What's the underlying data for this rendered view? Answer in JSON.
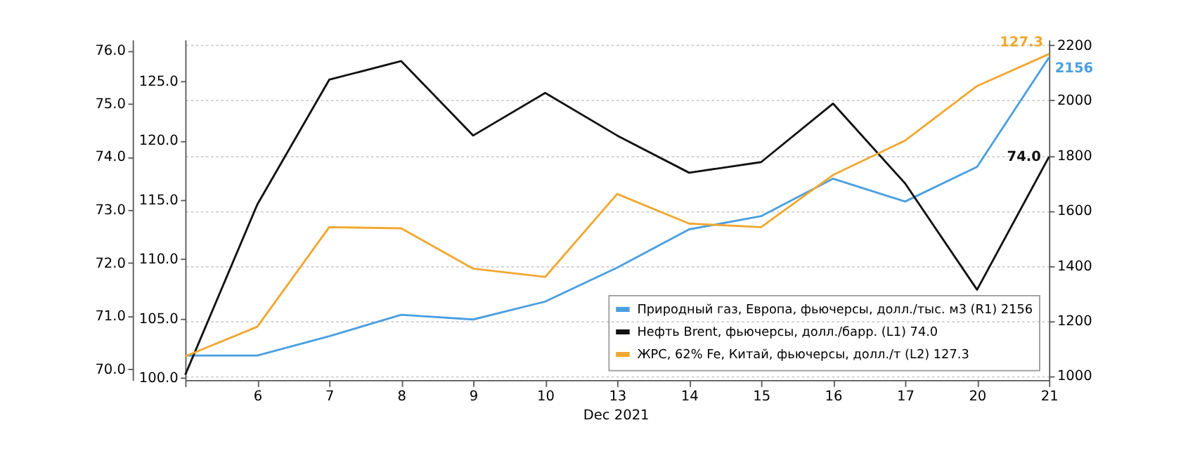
{
  "chart_data": {
    "type": "line",
    "xlabel": "Dec 2021",
    "categories": [
      null,
      "6",
      "7",
      "8",
      "9",
      "10",
      "13",
      "14",
      "15",
      "16",
      "17",
      "20",
      "21"
    ],
    "series": [
      {
        "name": "Природный газ, Европа, фьючерсы, долл./тыс. м3 (R1) 2156",
        "color": "#4a9fe0",
        "axis": "y2",
        "values": [
          1074,
          1074,
          1144,
          1222,
          1205,
          1270,
          1393,
          1532,
          1580,
          1716,
          1633,
          1759,
          2156
        ],
        "value_labels": [
          null,
          null,
          null,
          null,
          null,
          null,
          null,
          null,
          null,
          null,
          null,
          null,
          "2156"
        ]
      },
      {
        "name": "Нефть Brent, фьючерсы, долл./барр. (L1) 74.0",
        "color": "#111111",
        "axis": "y",
        "values": [
          69.9,
          73.1,
          75.45,
          75.8,
          74.4,
          75.2,
          74.4,
          73.7,
          73.9,
          75.0,
          73.5,
          71.5,
          74.0
        ],
        "value_labels": [
          null,
          null,
          null,
          null,
          null,
          null,
          null,
          null,
          null,
          null,
          null,
          null,
          "74.0"
        ]
      },
      {
        "name": "ЖРС, 62% Fe, Китай, фьючерсы, долл./т (L2) 127.3",
        "color": "#f0a830",
        "axis": "y3",
        "values": [
          101.8,
          104.3,
          112.7,
          112.6,
          109.2,
          108.5,
          115.5,
          113.0,
          112.7,
          117.1,
          120.0,
          124.6,
          127.3
        ],
        "value_labels": [
          null,
          null,
          null,
          null,
          null,
          null,
          null,
          null,
          null,
          null,
          null,
          null,
          "127.3"
        ]
      }
    ],
    "ylim": [
      69.8,
      76.2
    ],
    "yticks": [
      {
        "value": 70,
        "label": "70.0"
      },
      {
        "value": 71,
        "label": "71.0"
      },
      {
        "value": 72,
        "label": "72.0"
      },
      {
        "value": 73,
        "label": "73.0"
      },
      {
        "value": 74,
        "label": "74.0"
      },
      {
        "value": 75,
        "label": "75.0"
      },
      {
        "value": 76,
        "label": "76.0"
      }
    ],
    "y3lim": [
      99.8,
      128.5
    ],
    "y3ticks": [
      {
        "value": 100,
        "label": "100.0"
      },
      {
        "value": 105,
        "label": "105.0"
      },
      {
        "value": 110,
        "label": "110.0"
      },
      {
        "value": 115,
        "label": "115.0"
      },
      {
        "value": 120,
        "label": "120.0"
      },
      {
        "value": 125,
        "label": "125.0"
      }
    ],
    "y2lim": [
      985,
      2220
    ],
    "y2ticks": [
      1000,
      1200,
      1400,
      1600,
      1800,
      2000,
      2200
    ],
    "grid": "y2",
    "legend": "bottom right"
  }
}
